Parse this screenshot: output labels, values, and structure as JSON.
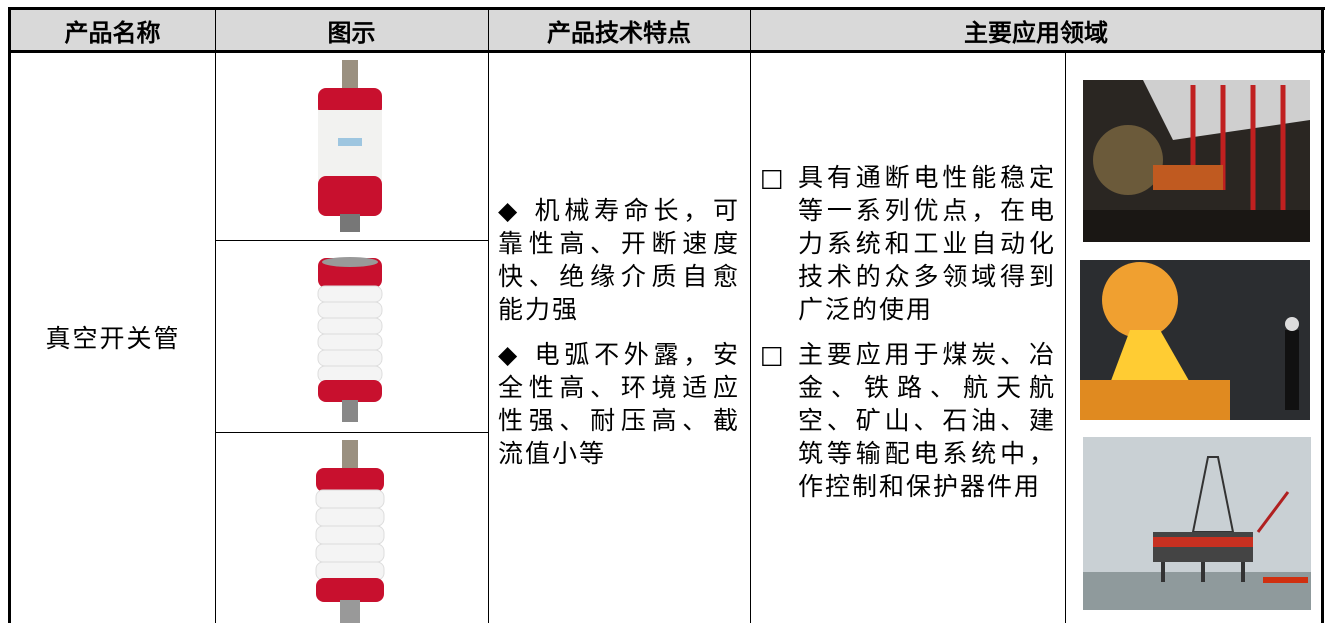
{
  "table": {
    "header": [
      "产品名称",
      "图示",
      "产品技术特点",
      "主要应用领域"
    ],
    "rows": [
      {
        "name": "真空开关管",
        "features": [
          "◆ 机械寿命长，可靠性高、开断速度快、绝缘介质自愈能力强",
          "◆ 电弧不外露，安全性高、环境适应性强、耐压高、截流值小等"
        ],
        "applications": [
          {
            "bullet": "□",
            "text": "具有通断电性能稳定等一系列优点，在电力系统和工业自动化技术的众多领域得到广泛的使用"
          },
          {
            "bullet": "□",
            "text": "主要应用于煤炭、冶金、铁路、航天航空、矿山、石油、建筑等输配电系统中，作控制和保护器件用"
          }
        ]
      }
    ]
  }
}
